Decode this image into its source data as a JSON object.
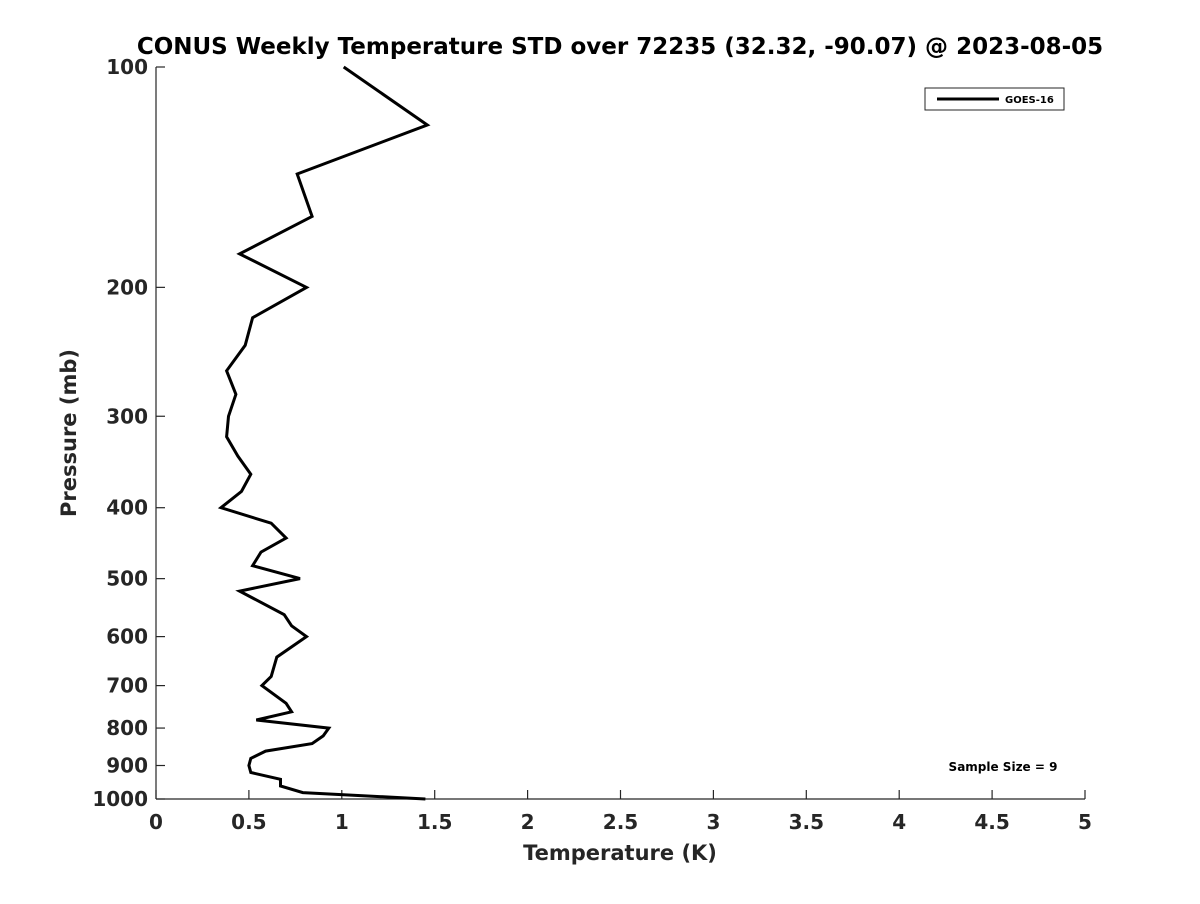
{
  "chart_data": {
    "type": "line",
    "title": "CONUS Weekly Temperature STD over 72235 (32.32, -90.07) @ 2023-08-05",
    "xlabel": "Temperature (K)",
    "ylabel": "Pressure (mb)",
    "xlim": [
      0,
      5
    ],
    "ylim": [
      100,
      1000
    ],
    "yscale": "log",
    "yreverse": true,
    "grid": false,
    "xticks": [
      0,
      0.5,
      1,
      1.5,
      2,
      2.5,
      3,
      3.5,
      4,
      4.5,
      5
    ],
    "xtick_labels": [
      "0",
      "0.5",
      "1",
      "1.5",
      "2",
      "2.5",
      "3",
      "3.5",
      "4",
      "4.5",
      "5"
    ],
    "yticks": [
      100,
      200,
      300,
      400,
      500,
      600,
      700,
      800,
      900,
      1000
    ],
    "ytick_labels": [
      "100",
      "200",
      "300",
      "400",
      "500",
      "600",
      "700",
      "800",
      "900",
      "1000"
    ],
    "legend": {
      "placement": "top-right",
      "entries": [
        "GOES-16"
      ]
    },
    "annotation": "Sample Size = 9",
    "series": [
      {
        "name": "GOES-16",
        "color": "#000000",
        "pressure": [
          100,
          120,
          140,
          160,
          180,
          200,
          220,
          240,
          260,
          280,
          300,
          320,
          340,
          360,
          380,
          400,
          420,
          440,
          460,
          480,
          500,
          520,
          560,
          580,
          600,
          640,
          680,
          700,
          740,
          760,
          780,
          800,
          820,
          840,
          860,
          880,
          900,
          920,
          940,
          960,
          980,
          1000
        ],
        "temperature": [
          1.01,
          1.46,
          0.76,
          0.84,
          0.45,
          0.81,
          0.52,
          0.48,
          0.38,
          0.43,
          0.39,
          0.38,
          0.44,
          0.51,
          0.46,
          0.35,
          0.62,
          0.7,
          0.565,
          0.52,
          0.775,
          0.45,
          0.69,
          0.73,
          0.81,
          0.65,
          0.62,
          0.57,
          0.7,
          0.73,
          0.54,
          0.93,
          0.9,
          0.84,
          0.59,
          0.51,
          0.5,
          0.51,
          0.67,
          0.67,
          0.79,
          1.45
        ]
      }
    ]
  }
}
